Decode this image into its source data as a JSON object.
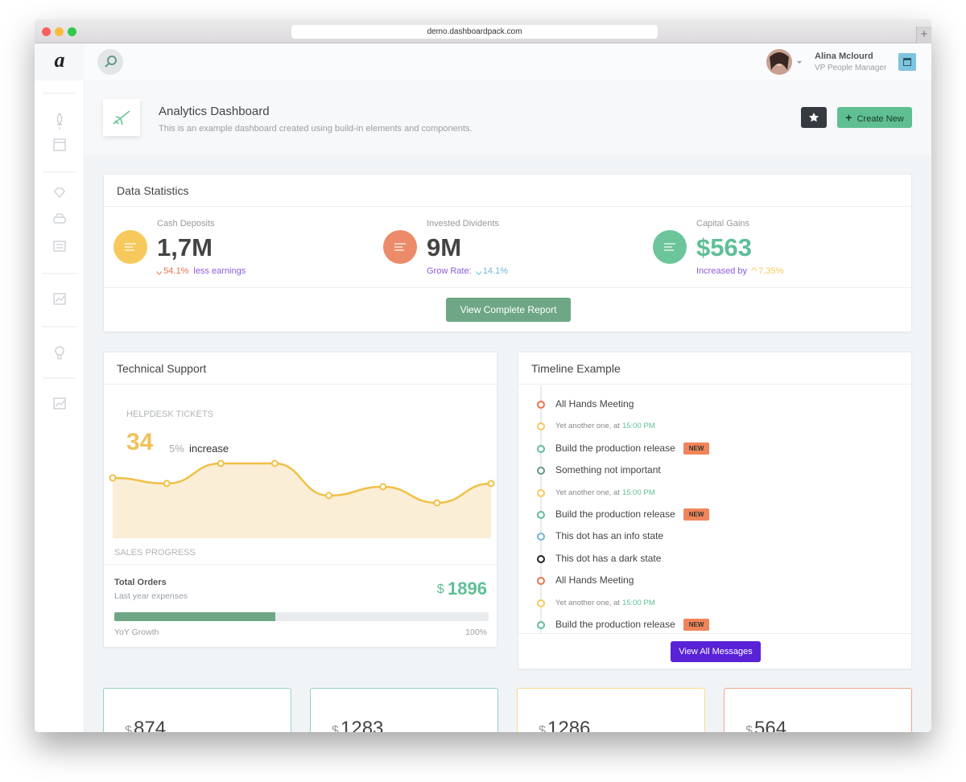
{
  "browser": {
    "url": "demo.dashboardpack.com"
  },
  "header": {
    "user_name": "Alina Mclourd",
    "user_role": "VP People Manager"
  },
  "page_title": {
    "title": "Analytics Dashboard",
    "subtitle": "This is an example dashboard created using build-in elements and components.",
    "button": "Create New"
  },
  "stats": {
    "title": "Data Statistics",
    "items": [
      {
        "label": "Cash Deposits",
        "value": "1,7M",
        "color": "#f7c95c",
        "value_color": "#444444",
        "parts": [
          {
            "text": "54.1%",
            "color": "#e9724c",
            "trend": "down"
          },
          {
            "text": "less earnings",
            "color": "#8b5cd6"
          }
        ]
      },
      {
        "label": "Invested Dividents",
        "value": "9M",
        "color": "#ec8b6a",
        "value_color": "#444444",
        "parts": [
          {
            "text": "Grow Rate:",
            "color": "#8b5cd6"
          },
          {
            "text": "14.1%",
            "color": "#6fb7d6",
            "trend": "down"
          }
        ]
      },
      {
        "label": "Capital Gains",
        "value": "$563",
        "color": "#6cc49a",
        "value_color": "#5ebf96",
        "parts": [
          {
            "text": "Increased by",
            "color": "#8b5cd6"
          },
          {
            "text": "7.35%",
            "color": "#f7c95c",
            "trend": "up"
          }
        ]
      }
    ],
    "button": "View Complete Report"
  },
  "support": {
    "title": "Technical Support",
    "tickets_label": "HELPDESK TICKETS",
    "tickets_value": "34",
    "tickets_change": "5%",
    "tickets_note": "increase",
    "chart": {
      "type": "area",
      "values": [
        75,
        68,
        93,
        93,
        53,
        64,
        44,
        68
      ],
      "ylim": [
        0,
        100
      ],
      "color": "#f0c046",
      "fill": "#fbeed6"
    },
    "chart_label": "SALES PROGRESS",
    "orders_title": "Total Orders",
    "orders_subtitle": "Last year expenses",
    "orders_currency": "$",
    "orders_value": "1896",
    "progress": 43,
    "progress_max": 100,
    "progress_label": "YoY Growth",
    "progress_max_label": "100%"
  },
  "timeline": {
    "title": "Timeline Example",
    "items": [
      {
        "text": "All Hands Meeting",
        "color": "#e9724c"
      },
      {
        "text": "Yet another one, at",
        "time": "15:00 PM",
        "color": "#f7c95c"
      },
      {
        "text": "Build the production release",
        "badge": "NEW",
        "color": "#5ebf96"
      },
      {
        "text": "Something not important",
        "color": "#5f9b83"
      },
      {
        "text": "Yet another one, at",
        "time": "15:00 PM",
        "color": "#f7c95c"
      },
      {
        "text": "Build the production release",
        "badge": "NEW",
        "color": "#5ebf96"
      },
      {
        "text": "This dot has an info state",
        "color": "#6fb7d6"
      },
      {
        "text": "This dot has a dark state",
        "color": "#222222"
      },
      {
        "text": "All Hands Meeting",
        "color": "#e9724c"
      },
      {
        "text": "Yet another one, at",
        "time": "15:00 PM",
        "color": "#f7c95c"
      },
      {
        "text": "Build the production release",
        "badge": "NEW",
        "color": "#5ebf96"
      }
    ],
    "button": "View All Messages"
  },
  "cards": [
    {
      "currency": "$",
      "value": "874",
      "color": "#8fd6c4"
    },
    {
      "currency": "$",
      "value": "1283",
      "color": "#8fd0c8"
    },
    {
      "currency": "$",
      "value": "1286",
      "color": "#f8d98c"
    },
    {
      "currency": "$",
      "value": "564",
      "color": "#f3a48a"
    }
  ]
}
